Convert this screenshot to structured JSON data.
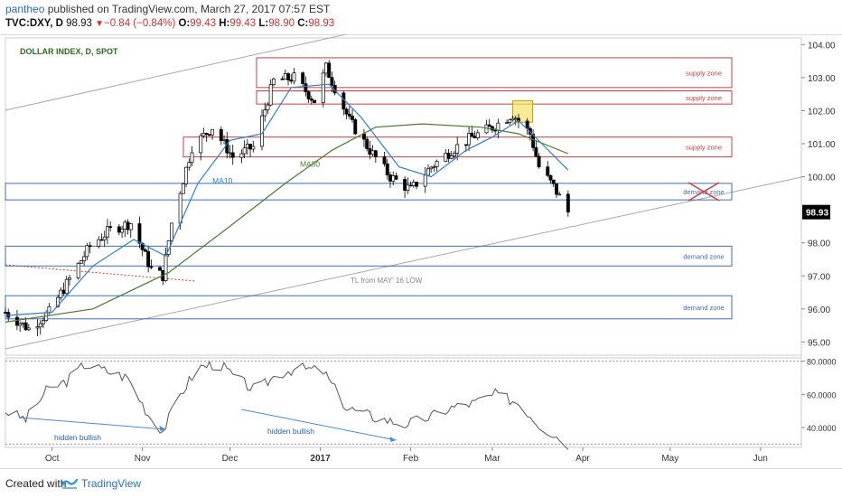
{
  "header": {
    "publisher": "pantheo",
    "published_text": "published on TradingView.com, March 27, 2017 07:57 EST",
    "symbol": "TVC:DXY, D",
    "last": "98.93",
    "change": "−0.84 (−0.84%)",
    "open_label": "O:",
    "open": "99.43",
    "high_label": "H:",
    "high": "99.43",
    "low_label": "L:",
    "low": "98.90",
    "close_label": "C:",
    "close": "98.93"
  },
  "footer": {
    "created_with": "Created with",
    "brand": "TradingView"
  },
  "colors": {
    "candle_up": "#ffffff",
    "candle_down": "#000000",
    "ma10": "#2f7fd1",
    "ma50": "#4a7a2e",
    "supply": "#d33c3c",
    "demand": "#3a6fb8",
    "trendline": "#a0a0a0",
    "oscillator": "#555555",
    "price_badge": "#000000",
    "highlight": "#f5e36a"
  },
  "chart_data": {
    "type": "candlestick",
    "title": "DOLLAR INDEX, D, SPOT",
    "last_price": 98.93,
    "ylim": [
      94.6,
      104.2
    ],
    "y_ticks": [
      "104.00",
      "103.00",
      "102.00",
      "101.00",
      "100.00",
      "98.00",
      "97.00",
      "96.00",
      "95.00"
    ],
    "x_ticks": [
      "Oct",
      "Nov",
      "Dec",
      "2017",
      "Feb",
      "Mar",
      "Apr",
      "May",
      "Jun"
    ],
    "x_tick_dates": [
      "2016-10-01",
      "2016-11-01",
      "2016-12-01",
      "2017-01-01",
      "2017-02-01",
      "2017-03-01",
      "2017-04-01",
      "2017-05-01",
      "2017-06-01"
    ],
    "xlim": [
      "2016-09-15",
      "2017-06-15"
    ],
    "closes": [
      {
        "date": "2016-09-15",
        "close": 95.9
      },
      {
        "date": "2016-09-23",
        "close": 95.4
      },
      {
        "date": "2016-09-30",
        "close": 95.9
      },
      {
        "date": "2016-10-07",
        "close": 96.9
      },
      {
        "date": "2016-10-14",
        "close": 97.9
      },
      {
        "date": "2016-10-21",
        "close": 98.4
      },
      {
        "date": "2016-10-28",
        "close": 98.6
      },
      {
        "date": "2016-11-04",
        "close": 97.2
      },
      {
        "date": "2016-11-08",
        "close": 97.0
      },
      {
        "date": "2016-11-11",
        "close": 98.6
      },
      {
        "date": "2016-11-18",
        "close": 100.9
      },
      {
        "date": "2016-11-25",
        "close": 101.5
      },
      {
        "date": "2016-12-02",
        "close": 100.6
      },
      {
        "date": "2016-12-09",
        "close": 100.9
      },
      {
        "date": "2016-12-16",
        "close": 102.9
      },
      {
        "date": "2016-12-23",
        "close": 103.0
      },
      {
        "date": "2016-12-30",
        "close": 102.3
      },
      {
        "date": "2017-01-03",
        "close": 103.3
      },
      {
        "date": "2017-01-11",
        "close": 101.7
      },
      {
        "date": "2017-01-18",
        "close": 100.8
      },
      {
        "date": "2017-01-25",
        "close": 100.0
      },
      {
        "date": "2017-02-01",
        "close": 99.6
      },
      {
        "date": "2017-02-08",
        "close": 100.3
      },
      {
        "date": "2017-02-15",
        "close": 100.8
      },
      {
        "date": "2017-02-22",
        "close": 101.2
      },
      {
        "date": "2017-03-01",
        "close": 101.5
      },
      {
        "date": "2017-03-08",
        "close": 101.9
      },
      {
        "date": "2017-03-14",
        "close": 101.3
      },
      {
        "date": "2017-03-17",
        "close": 100.3
      },
      {
        "date": "2017-03-22",
        "close": 99.7
      },
      {
        "date": "2017-03-27",
        "close": 98.93
      }
    ],
    "ma10": {
      "label": "MA10",
      "points": [
        {
          "date": "2016-09-15",
          "value": 95.8
        },
        {
          "date": "2016-10-01",
          "value": 95.9
        },
        {
          "date": "2016-10-15",
          "value": 97.3
        },
        {
          "date": "2016-10-29",
          "value": 98.1
        },
        {
          "date": "2016-11-09",
          "value": 97.6
        },
        {
          "date": "2016-11-20",
          "value": 99.8
        },
        {
          "date": "2016-12-01",
          "value": 101.1
        },
        {
          "date": "2016-12-12",
          "value": 101.3
        },
        {
          "date": "2016-12-22",
          "value": 102.7
        },
        {
          "date": "2017-01-04",
          "value": 102.8
        },
        {
          "date": "2017-01-15",
          "value": 101.8
        },
        {
          "date": "2017-01-28",
          "value": 100.3
        },
        {
          "date": "2017-02-08",
          "value": 100.0
        },
        {
          "date": "2017-02-20",
          "value": 100.8
        },
        {
          "date": "2017-03-01",
          "value": 101.2
        },
        {
          "date": "2017-03-10",
          "value": 101.7
        },
        {
          "date": "2017-03-18",
          "value": 101.0
        },
        {
          "date": "2017-03-27",
          "value": 100.2
        }
      ]
    },
    "ma50": {
      "label": "MA50",
      "points": [
        {
          "date": "2016-09-15",
          "value": 95.6
        },
        {
          "date": "2016-10-15",
          "value": 96.0
        },
        {
          "date": "2016-11-10",
          "value": 97.1
        },
        {
          "date": "2016-12-01",
          "value": 98.5
        },
        {
          "date": "2016-12-20",
          "value": 99.8
        },
        {
          "date": "2017-01-05",
          "value": 100.8
        },
        {
          "date": "2017-01-20",
          "value": 101.5
        },
        {
          "date": "2017-02-05",
          "value": 101.6
        },
        {
          "date": "2017-02-25",
          "value": 101.5
        },
        {
          "date": "2017-03-10",
          "value": 101.3
        },
        {
          "date": "2017-03-27",
          "value": 100.7
        }
      ]
    },
    "zones": [
      {
        "label": "supply zone",
        "kind": "supply",
        "from": 102.7,
        "to": 103.6
      },
      {
        "label": "supply zone",
        "kind": "supply",
        "from": 102.2,
        "to": 102.6
      },
      {
        "label": "supply zone",
        "kind": "supply",
        "from": 100.6,
        "to": 101.2
      },
      {
        "label": "demand zone",
        "kind": "demand",
        "from": 99.3,
        "to": 99.8,
        "crossed_out": true
      },
      {
        "label": "demand zone",
        "kind": "demand",
        "from": 97.3,
        "to": 97.9
      },
      {
        "label": "demand zone",
        "kind": "demand",
        "from": 95.7,
        "to": 96.4
      }
    ],
    "trendline_label": "TL from MAY' 16 LOW",
    "oscillator": {
      "y_ticks": [
        "80.0000",
        "60.0000",
        "40.0000"
      ],
      "ylim": [
        28,
        82
      ],
      "last": 30,
      "points": [
        {
          "date": "2016-09-15",
          "value": 50
        },
        {
          "date": "2016-09-22",
          "value": 45
        },
        {
          "date": "2016-09-29",
          "value": 62
        },
        {
          "date": "2016-10-06",
          "value": 68
        },
        {
          "date": "2016-10-12",
          "value": 78
        },
        {
          "date": "2016-10-20",
          "value": 74
        },
        {
          "date": "2016-10-27",
          "value": 70
        },
        {
          "date": "2016-11-03",
          "value": 48
        },
        {
          "date": "2016-11-08",
          "value": 38
        },
        {
          "date": "2016-11-14",
          "value": 60
        },
        {
          "date": "2016-11-20",
          "value": 76
        },
        {
          "date": "2016-11-27",
          "value": 79
        },
        {
          "date": "2016-12-03",
          "value": 70
        },
        {
          "date": "2016-12-10",
          "value": 62
        },
        {
          "date": "2016-12-17",
          "value": 72
        },
        {
          "date": "2016-12-24",
          "value": 76
        },
        {
          "date": "2017-01-02",
          "value": 74
        },
        {
          "date": "2017-01-10",
          "value": 52
        },
        {
          "date": "2017-01-20",
          "value": 46
        },
        {
          "date": "2017-01-30",
          "value": 42
        },
        {
          "date": "2017-02-07",
          "value": 46
        },
        {
          "date": "2017-02-15",
          "value": 52
        },
        {
          "date": "2017-02-23",
          "value": 55
        },
        {
          "date": "2017-03-02",
          "value": 60
        },
        {
          "date": "2017-03-10",
          "value": 55
        },
        {
          "date": "2017-03-17",
          "value": 42
        },
        {
          "date": "2017-03-22",
          "value": 36
        },
        {
          "date": "2017-03-27",
          "value": 30
        }
      ],
      "annotations": [
        {
          "label": "hidden bullish",
          "from": "2016-09-20",
          "to": "2016-11-09"
        },
        {
          "label": "hidden bullish",
          "from": "2016-12-05",
          "to": "2017-01-27"
        }
      ]
    }
  }
}
